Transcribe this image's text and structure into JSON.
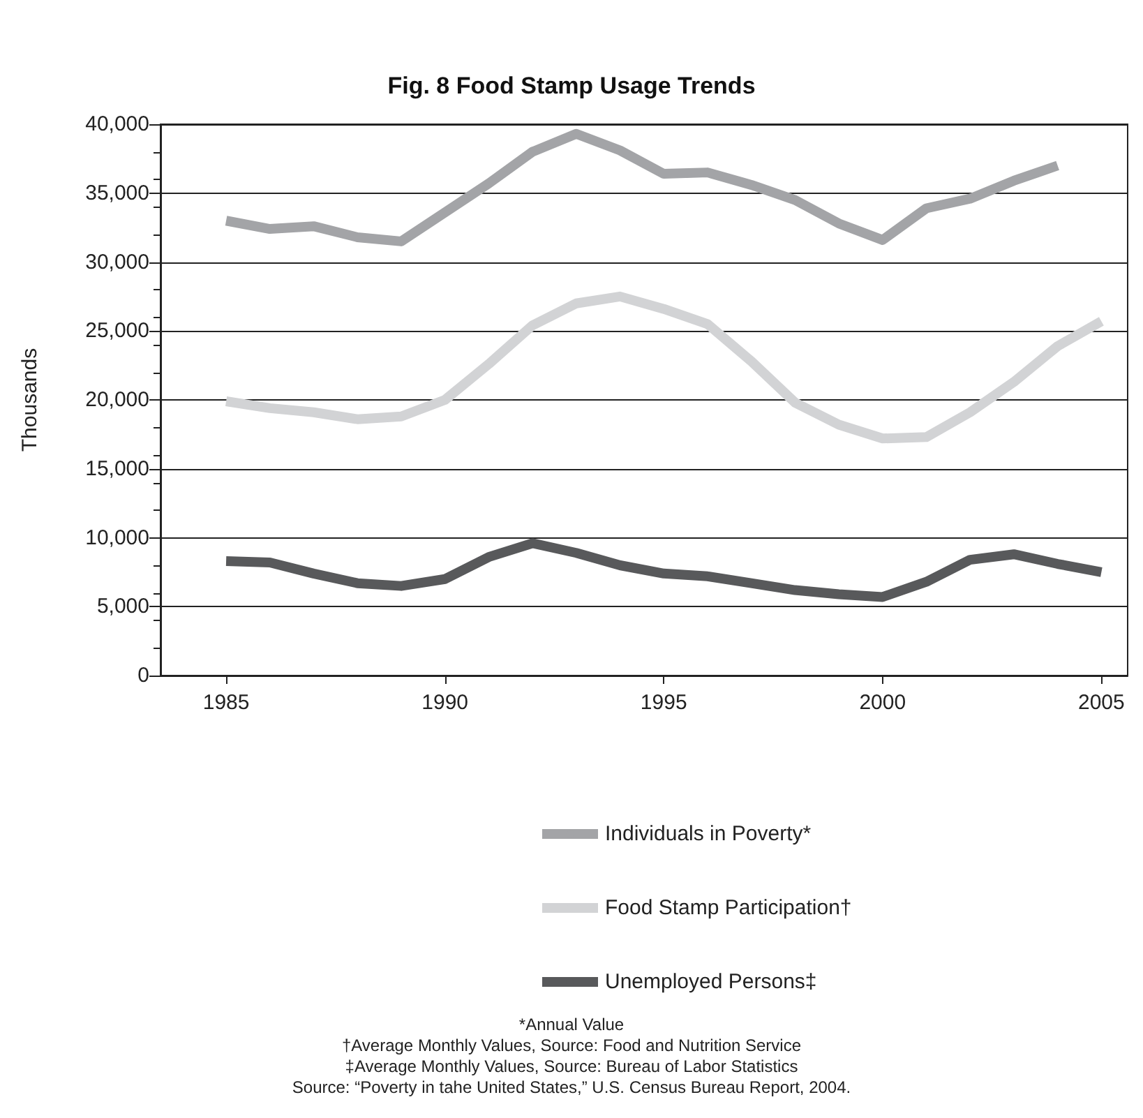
{
  "chart_data": {
    "type": "line",
    "title": "Fig. 8 Food Stamp Usage Trends",
    "ylabel": "Thousands",
    "x": [
      1985,
      1986,
      1987,
      1988,
      1989,
      1990,
      1991,
      1992,
      1993,
      1994,
      1995,
      1996,
      1997,
      1998,
      1999,
      2000,
      2001,
      2002,
      2003,
      2004,
      2005
    ],
    "series": [
      {
        "name": "Individuals in Poverty*",
        "color": "#a3a4a7",
        "values": [
          33000,
          32400,
          32600,
          31800,
          31500,
          33600,
          35700,
          38000,
          39300,
          38100,
          36400,
          36500,
          35600,
          34500,
          32800,
          31600,
          33900,
          34600,
          35900,
          37000,
          null
        ]
      },
      {
        "name": "Food Stamp Participation†",
        "color": "#d2d3d5",
        "values": [
          19900,
          19400,
          19100,
          18600,
          18800,
          20000,
          22600,
          25400,
          27000,
          27500,
          26600,
          25500,
          22800,
          19800,
          18200,
          17200,
          17300,
          19100,
          21300,
          23900,
          25700
        ]
      },
      {
        "name": "Unemployed Persons‡",
        "color": "#58595b",
        "values": [
          8300,
          8200,
          7400,
          6700,
          6500,
          7000,
          8600,
          9600,
          8900,
          8000,
          7400,
          7200,
          6700,
          6200,
          5900,
          5700,
          6800,
          8400,
          8800,
          8100,
          7500
        ]
      }
    ],
    "xlim": [
      1983.5,
      2005.6
    ],
    "xticks": [
      1985,
      1990,
      1995,
      2000,
      2005
    ],
    "ylim": [
      0,
      40000
    ],
    "yticks": [
      0,
      {
        "value": 5000,
        "label": "5,000"
      },
      {
        "value": 10000,
        "label": "10,000"
      },
      {
        "value": 15000,
        "label": "15,000"
      },
      {
        "value": 20000,
        "label": "20,000"
      },
      {
        "value": 25000,
        "label": "25,000"
      },
      {
        "value": 30000,
        "label": "30,000"
      },
      {
        "value": 35000,
        "label": "35,000"
      },
      {
        "value": 40000,
        "label": "40,000"
      }
    ],
    "grid": "y",
    "legend": "bottom",
    "marker": "none",
    "line_style": "solid",
    "annotations": [
      "*Annual Value",
      "†Average Monthly Values, Source: Food and Nutrition Service",
      "‡Average Monthly Values, Source: Bureau of Labor Statistics",
      "Source: “Poverty in tahe United States,” U.S. Census Bureau Report, 2004."
    ]
  }
}
